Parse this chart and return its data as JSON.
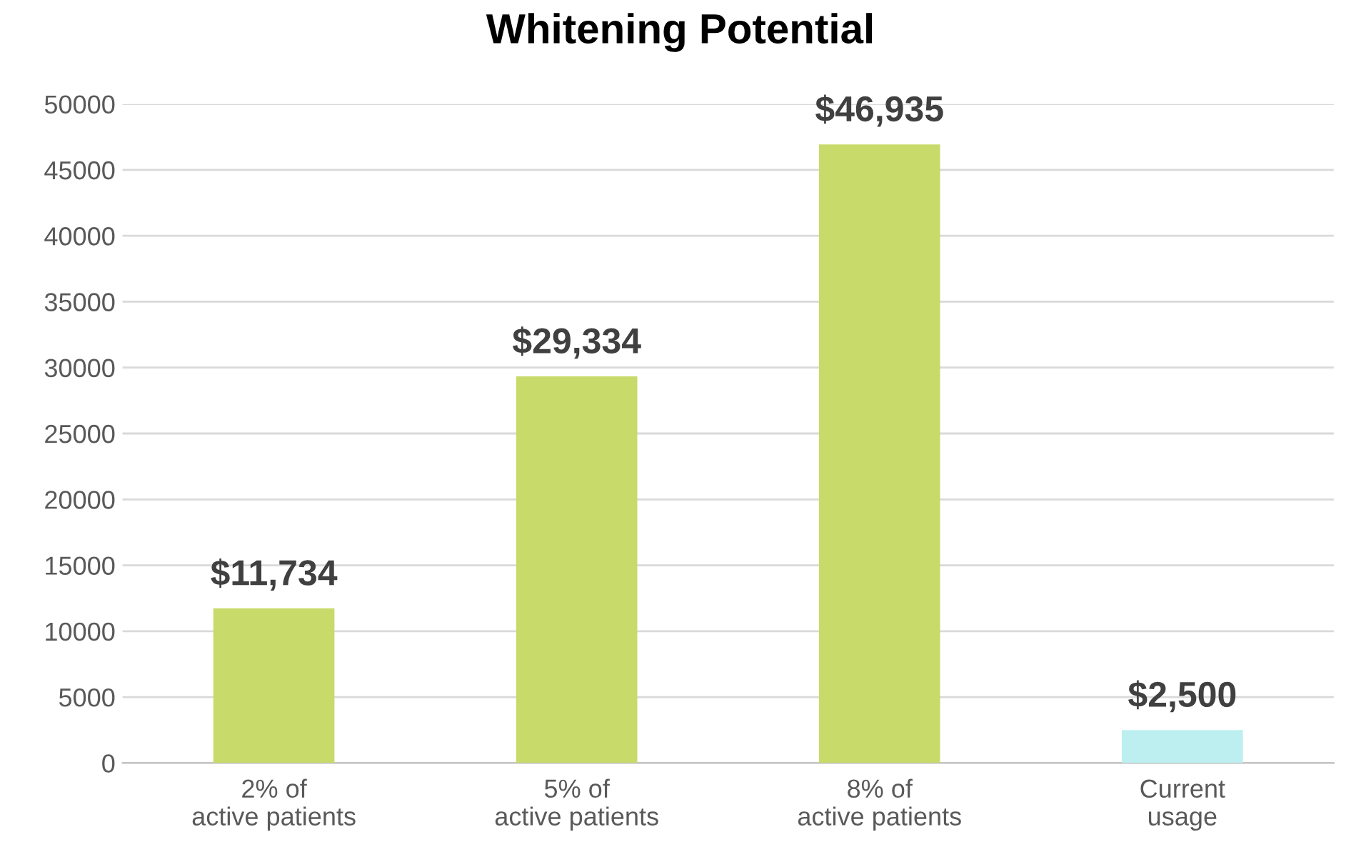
{
  "chart_data": {
    "type": "bar",
    "title": "Whitening Potential",
    "categories": [
      "2% of\nactive patients",
      "5% of\nactive patients",
      "8% of\nactive patients",
      "Current\nusage"
    ],
    "values": [
      11734,
      29334,
      46935,
      2500
    ],
    "colors": [
      "#c8da6a",
      "#c8da6a",
      "#c8da6a",
      "#bdeff0"
    ],
    "value_labels": [
      "$11,734",
      "$29,334",
      "$46,935",
      "$2,500"
    ],
    "ylim": [
      0,
      50000
    ],
    "yticks": [
      0,
      5000,
      10000,
      15000,
      20000,
      25000,
      30000,
      35000,
      40000,
      45000,
      50000
    ],
    "grid": "y",
    "legend": false
  }
}
